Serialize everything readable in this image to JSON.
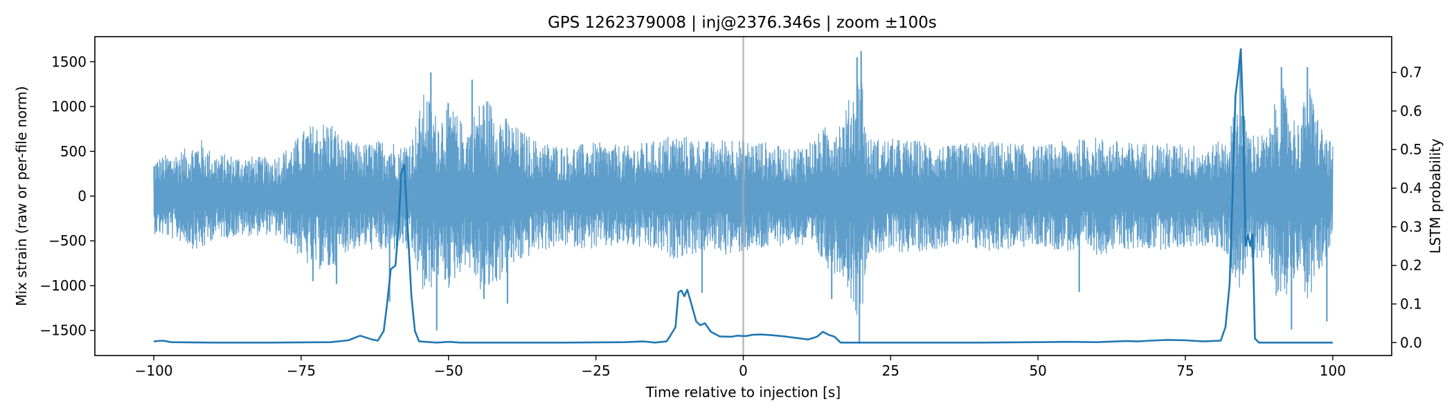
{
  "chart_data": {
    "type": "line",
    "title": "GPS 1262379008 | inj@2376.346s | zoom ±100s",
    "xlabel": "Time relative to injection [s]",
    "ylabel_left": "Mix strain (raw or per-file norm)",
    "ylabel_right": "LSTM probability",
    "xlim": [
      -110,
      110
    ],
    "ylim_left": [
      -1780,
      1780
    ],
    "ylim_right": [
      -0.0335,
      0.7925
    ],
    "x_ticks": [
      -100,
      -75,
      -50,
      -25,
      0,
      25,
      50,
      75,
      100
    ],
    "y_left_ticks": [
      -1500,
      -1000,
      -500,
      0,
      500,
      1000,
      1500
    ],
    "y_right_ticks": [
      0.0,
      0.1,
      0.2,
      0.3,
      0.4,
      0.5,
      0.6,
      0.7
    ],
    "injection_line_x": 0,
    "grid": false,
    "colors": {
      "strain": "#5f9ecb",
      "probability": "#1f77b4",
      "injection_line": "#aaaaaa"
    },
    "series": [
      {
        "axis": "left",
        "x_range": [
          -100,
          100
        ],
        "envelope": [
          [
            -100,
            420
          ],
          [
            -95,
            520
          ],
          [
            -92,
            640
          ],
          [
            -90,
            480
          ],
          [
            -85,
            450
          ],
          [
            -80,
            430
          ],
          [
            -77,
            550
          ],
          [
            -74,
            780
          ],
          [
            -70,
            860
          ],
          [
            -68,
            640
          ],
          [
            -65,
            580
          ],
          [
            -62,
            620
          ],
          [
            -60,
            650
          ],
          [
            -58,
            560
          ],
          [
            -56,
            700
          ],
          [
            -54,
            1200
          ],
          [
            -52,
            900
          ],
          [
            -50,
            1050
          ],
          [
            -47,
            760
          ],
          [
            -44,
            1150
          ],
          [
            -42,
            1000
          ],
          [
            -39,
            800
          ],
          [
            -35,
            620
          ],
          [
            -30,
            560
          ],
          [
            -25,
            600
          ],
          [
            -20,
            560
          ],
          [
            -15,
            620
          ],
          [
            -12,
            700
          ],
          [
            -8,
            650
          ],
          [
            -5,
            600
          ],
          [
            -2,
            680
          ],
          [
            0,
            620
          ],
          [
            3,
            620
          ],
          [
            8,
            520
          ],
          [
            12,
            650
          ],
          [
            15,
            850
          ],
          [
            17,
            900
          ],
          [
            19,
            1300
          ],
          [
            20,
            1500
          ],
          [
            21,
            650
          ],
          [
            25,
            640
          ],
          [
            30,
            620
          ],
          [
            35,
            560
          ],
          [
            40,
            620
          ],
          [
            45,
            600
          ],
          [
            50,
            560
          ],
          [
            55,
            620
          ],
          [
            60,
            660
          ],
          [
            65,
            600
          ],
          [
            70,
            600
          ],
          [
            75,
            580
          ],
          [
            79,
            560
          ],
          [
            82,
            650
          ],
          [
            84,
            1100
          ],
          [
            86,
            720
          ],
          [
            89,
            680
          ],
          [
            91,
            1300
          ],
          [
            94,
            820
          ],
          [
            96,
            1250
          ],
          [
            98,
            800
          ],
          [
            100,
            560
          ]
        ],
        "spikes": [
          [
            -53,
            1380
          ],
          [
            -46,
            1300
          ],
          [
            -52,
            -1500
          ],
          [
            -44,
            -1150
          ],
          [
            -40,
            -1200
          ],
          [
            15,
            -1150
          ],
          [
            19.3,
            1550
          ],
          [
            19.7,
            -1650
          ],
          [
            20,
            1620
          ],
          [
            91.3,
            1440
          ],
          [
            93,
            -1490
          ],
          [
            95.7,
            1440
          ],
          [
            99,
            -1400
          ],
          [
            84.3,
            1590
          ],
          [
            57,
            -1070
          ],
          [
            -73,
            -950
          ],
          [
            -69,
            -980
          ],
          [
            -7,
            -1080
          ],
          [
            -60,
            -1180
          ]
        ]
      },
      {
        "axis": "right",
        "points": [
          [
            -100,
            0.003
          ],
          [
            -98.5,
            0.005
          ],
          [
            -97,
            0.001
          ],
          [
            -90,
            0.0
          ],
          [
            -80,
            0.0
          ],
          [
            -70,
            0.001
          ],
          [
            -67,
            0.006
          ],
          [
            -65,
            0.018
          ],
          [
            -63,
            0.008
          ],
          [
            -62,
            0.005
          ],
          [
            -61,
            0.03
          ],
          [
            -60.5,
            0.09
          ],
          [
            -59.8,
            0.19
          ],
          [
            -59,
            0.2
          ],
          [
            -58.5,
            0.3
          ],
          [
            -58,
            0.44
          ],
          [
            -57.5,
            0.46
          ],
          [
            -57,
            0.32
          ],
          [
            -56.3,
            0.12
          ],
          [
            -55.7,
            0.03
          ],
          [
            -55,
            0.003
          ],
          [
            -52,
            0.0
          ],
          [
            -50,
            0.002
          ],
          [
            -48,
            0.0
          ],
          [
            -40,
            0.0
          ],
          [
            -30,
            0.0
          ],
          [
            -20,
            0.001
          ],
          [
            -17,
            0.003
          ],
          [
            -15,
            0.0
          ],
          [
            -13,
            0.003
          ],
          [
            -12.5,
            0.015
          ],
          [
            -11.5,
            0.04
          ],
          [
            -11,
            0.13
          ],
          [
            -10.5,
            0.135
          ],
          [
            -10,
            0.12
          ],
          [
            -9.5,
            0.137
          ],
          [
            -8.8,
            0.1
          ],
          [
            -8,
            0.055
          ],
          [
            -7.3,
            0.045
          ],
          [
            -6.5,
            0.05
          ],
          [
            -5.5,
            0.028
          ],
          [
            -4,
            0.016
          ],
          [
            -2,
            0.015
          ],
          [
            -1,
            0.018
          ],
          [
            0,
            0.017
          ],
          [
            0.5,
            0.017
          ],
          [
            1.5,
            0.02
          ],
          [
            3,
            0.021
          ],
          [
            5,
            0.019
          ],
          [
            7,
            0.016
          ],
          [
            9,
            0.012
          ],
          [
            11,
            0.008
          ],
          [
            12.5,
            0.015
          ],
          [
            13.5,
            0.028
          ],
          [
            14.5,
            0.02
          ],
          [
            15.5,
            0.015
          ],
          [
            16.5,
            0.0
          ],
          [
            20,
            0.0
          ],
          [
            30,
            0.0
          ],
          [
            40,
            0.0
          ],
          [
            50,
            0.001
          ],
          [
            55,
            0.002
          ],
          [
            60,
            0.001
          ],
          [
            65,
            0.004
          ],
          [
            67,
            0.003
          ],
          [
            69,
            0.005
          ],
          [
            72,
            0.007
          ],
          [
            75,
            0.006
          ],
          [
            78,
            0.003
          ],
          [
            81,
            0.005
          ],
          [
            81.8,
            0.04
          ],
          [
            82.5,
            0.15
          ],
          [
            83,
            0.38
          ],
          [
            83.5,
            0.64
          ],
          [
            84,
            0.7
          ],
          [
            84.4,
            0.76
          ],
          [
            84.8,
            0.58
          ],
          [
            85.2,
            0.25
          ],
          [
            85.6,
            0.28
          ],
          [
            86,
            0.25
          ],
          [
            86.4,
            0.28
          ],
          [
            86.8,
            0.01
          ],
          [
            87.5,
            0.0
          ],
          [
            90,
            0.0
          ],
          [
            95,
            0.0
          ],
          [
            100,
            0.0
          ]
        ]
      }
    ]
  }
}
